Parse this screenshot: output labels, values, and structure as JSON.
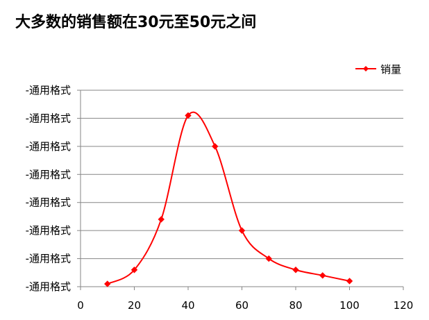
{
  "chart_data": {
    "type": "line",
    "title": "大多数的销售额在30元至50元之间",
    "xlabel": "",
    "ylabel": "",
    "smooth": true,
    "x": [
      10,
      20,
      30,
      40,
      50,
      60,
      70,
      80,
      90,
      100
    ],
    "series": [
      {
        "name": "销量",
        "color": "#ff0000",
        "marker": "diamond",
        "values": [
          0.1,
          0.6,
          2.4,
          6.1,
          5.0,
          2.0,
          1.0,
          0.6,
          0.4,
          0.2
        ]
      }
    ],
    "xlim": [
      0,
      120
    ],
    "ylim": [
      0,
      7
    ],
    "x_ticks": [
      "0",
      "20",
      "40",
      "60",
      "80",
      "100",
      "120"
    ],
    "y_tick_labels": [
      "-通用格式",
      "-通用格式",
      "-通用格式",
      "-通用格式",
      "-通用格式",
      "-通用格式",
      "-通用格式",
      "-通用格式"
    ],
    "grid": "horizontal",
    "legend_position": "top-right"
  }
}
